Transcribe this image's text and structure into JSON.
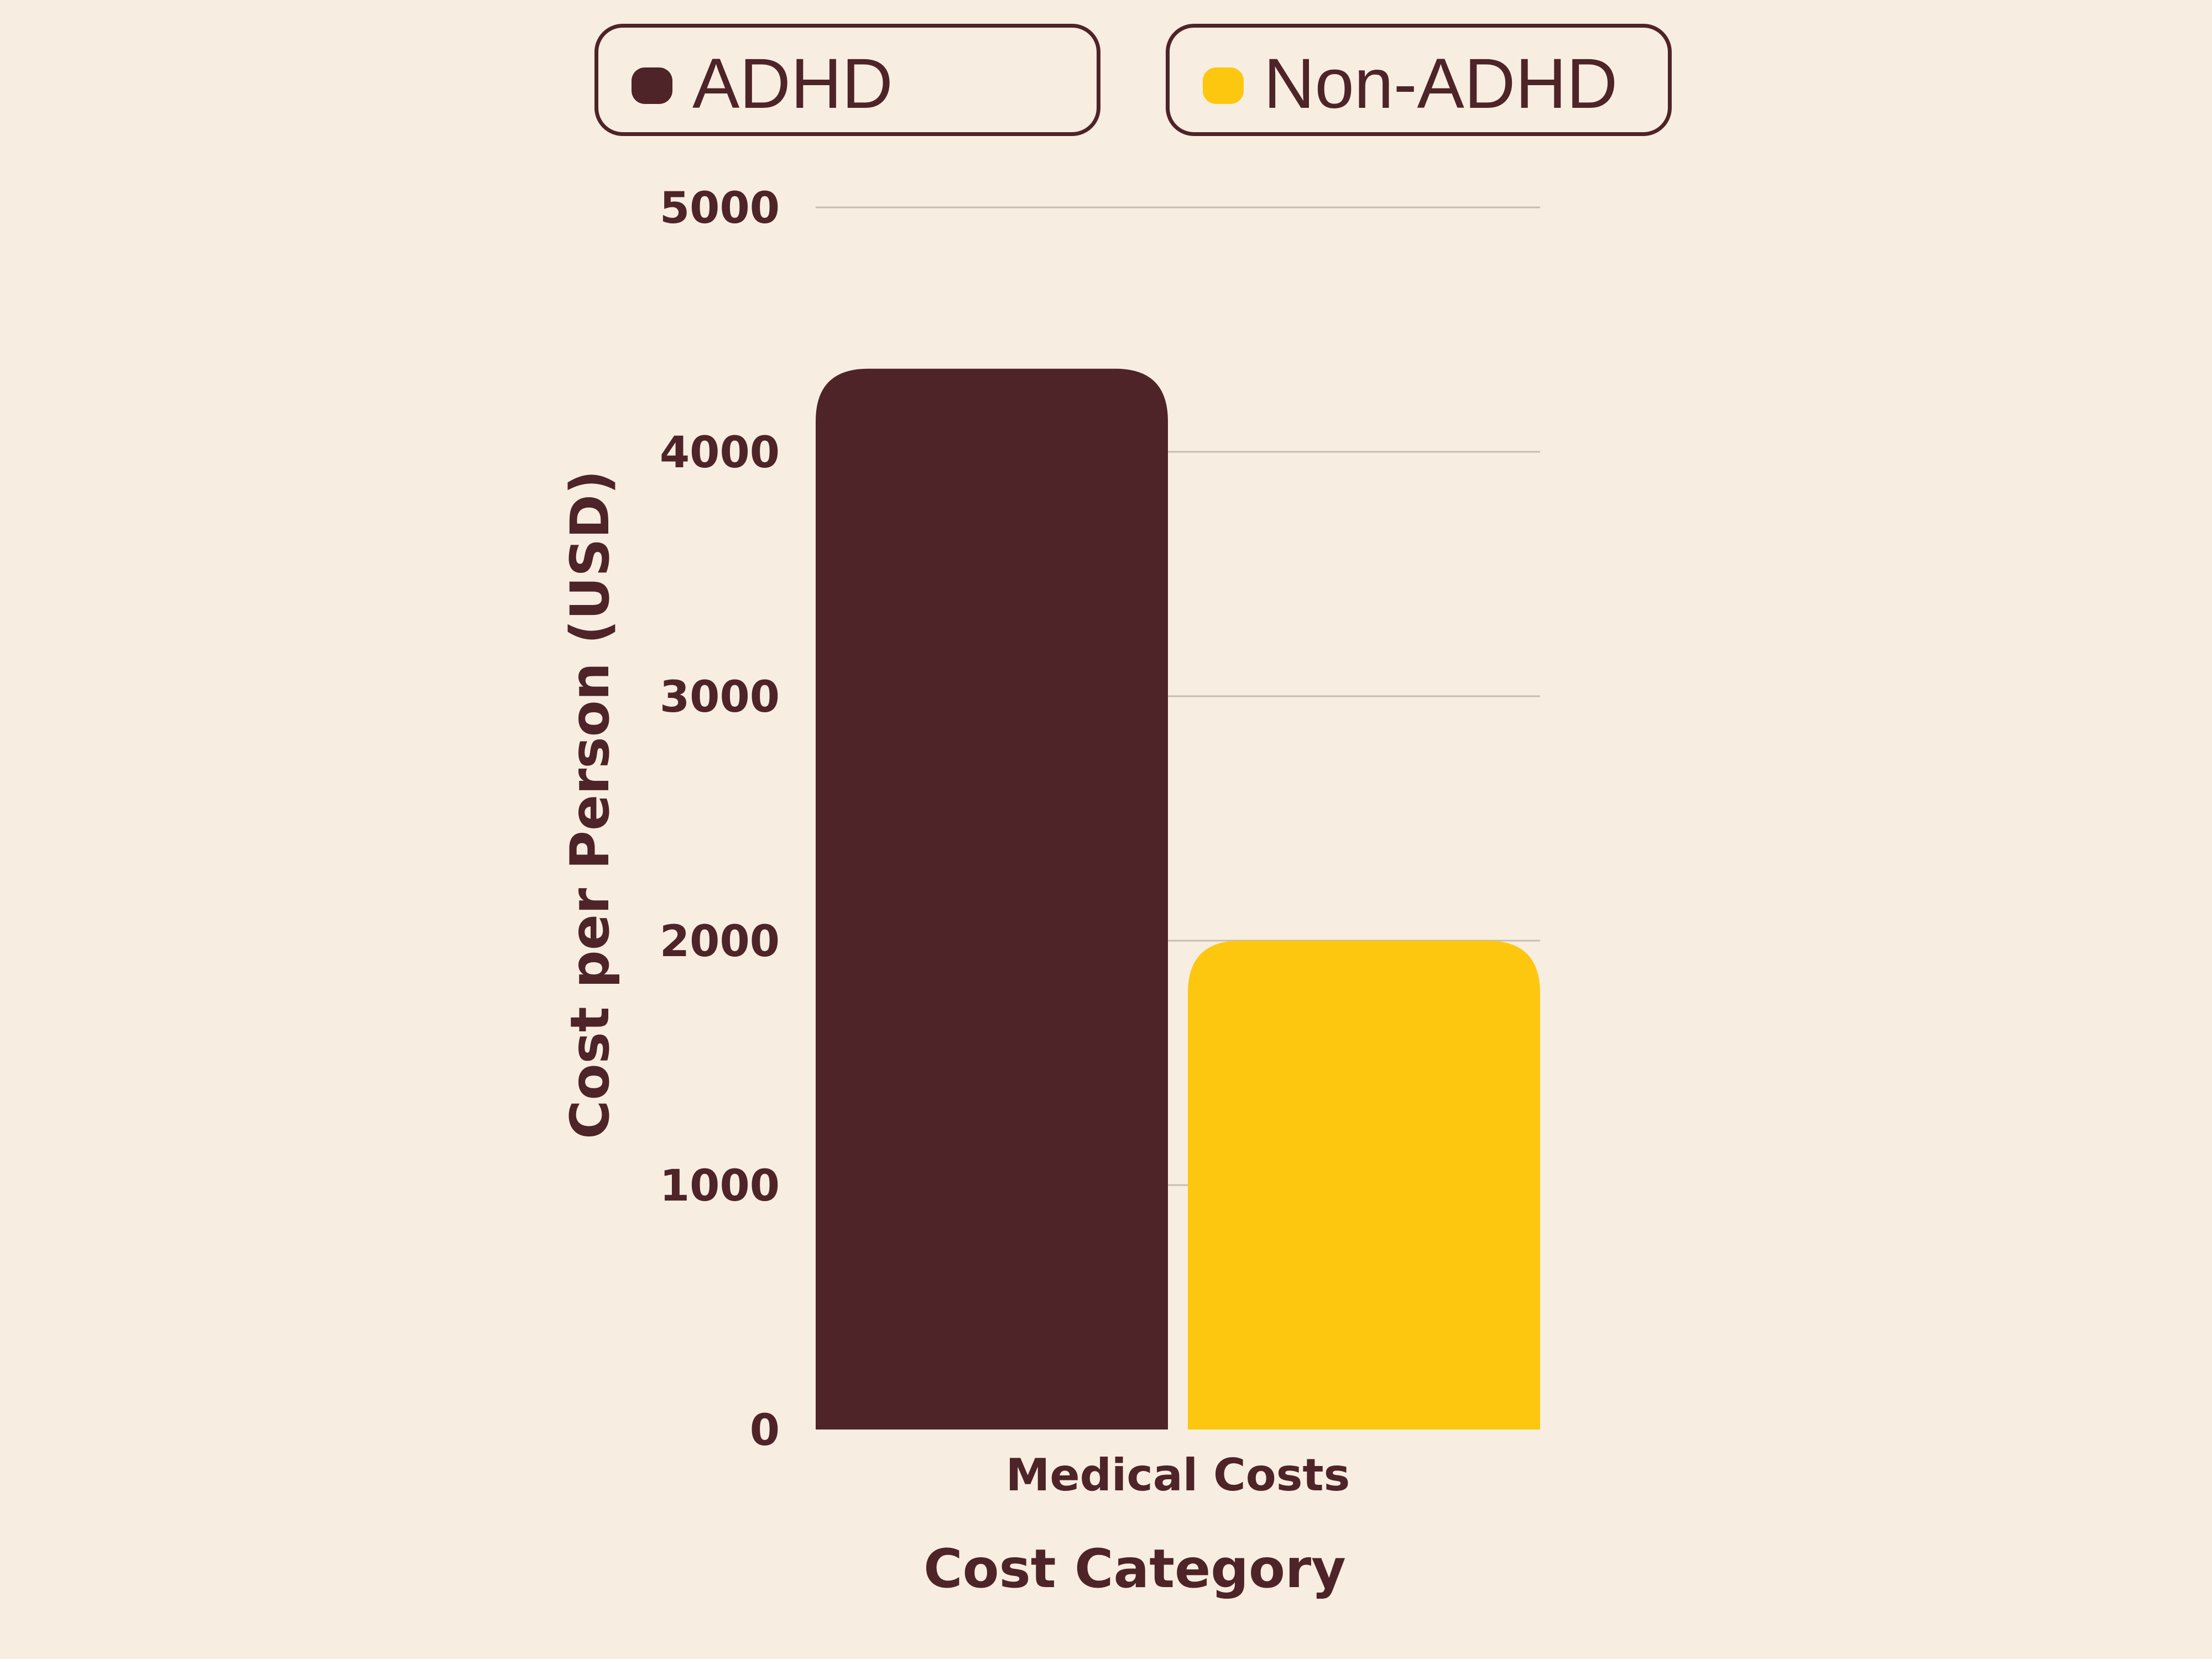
{
  "legend": {
    "items": [
      {
        "label": "ADHD",
        "color": "#4e2428"
      },
      {
        "label": "Non-ADHD",
        "color": "#fcc70e"
      }
    ]
  },
  "chart_data": {
    "type": "bar",
    "categories": [
      "Medical Costs"
    ],
    "series": [
      {
        "name": "ADHD",
        "values": [
          4340
        ],
        "color": "#4e2428"
      },
      {
        "name": "Non-ADHD",
        "values": [
          2000
        ],
        "color": "#fcc70e"
      }
    ],
    "xlabel": "Cost Category",
    "ylabel": "Cost per Person (USD)",
    "ylim": [
      0,
      5000
    ],
    "yticks": [
      0,
      1000,
      2000,
      3000,
      4000,
      5000
    ],
    "grid": true,
    "legend_position": "top"
  }
}
